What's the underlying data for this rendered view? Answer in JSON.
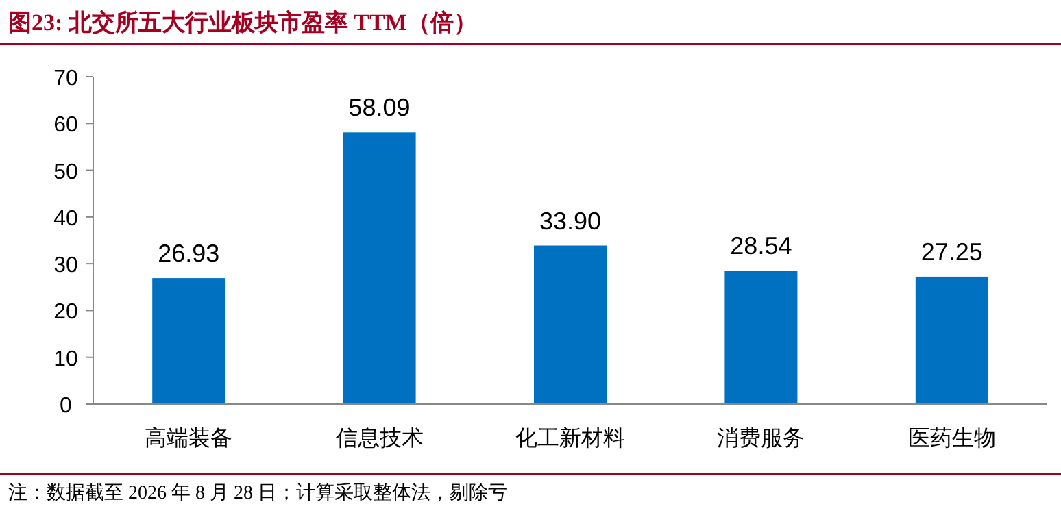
{
  "chart_data": {
    "type": "bar",
    "title": "图23:  北交所五大行业板块市盈率 TTM（倍）",
    "categories": [
      "高端装备",
      "信息技术",
      "化工新材料",
      "消费服务",
      "医药生物"
    ],
    "values": [
      26.93,
      58.09,
      33.9,
      28.54,
      27.25
    ],
    "value_labels": [
      "26.93",
      "58.09",
      "33.90",
      "28.54",
      "27.25"
    ],
    "color": "#0070c0",
    "ylim": [
      0,
      70
    ],
    "yticks": [
      0,
      10,
      20,
      30,
      40,
      50,
      60,
      70
    ],
    "annotations": [
      "注：数据截至 2026 年 8 月 28 日；计算采取整体法，剔除亏"
    ]
  }
}
